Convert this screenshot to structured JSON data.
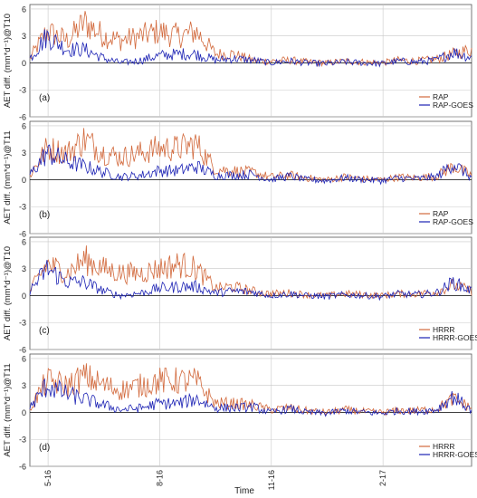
{
  "figure": {
    "xlabel": "Time",
    "x_ticks": [
      "5-16",
      "8-16",
      "11-16",
      "2-17"
    ]
  },
  "colors": {
    "model": "#d2693c",
    "goes": "#1c22b4",
    "grid": "#c8c8c8",
    "zero": "#000000"
  },
  "chart_data": [
    {
      "type": "line",
      "panel_label": "(a)",
      "ylabel": "AET diff. (mm*d⁻¹)@T10",
      "ylim": [
        -6,
        6.5
      ],
      "y_ticks": [
        -6,
        -3,
        0,
        3,
        6
      ],
      "x": [
        "2016-05-01",
        "2016-05-15",
        "2016-06-01",
        "2016-06-15",
        "2016-07-01",
        "2016-07-15",
        "2016-08-01",
        "2016-08-15",
        "2016-09-01",
        "2016-09-15",
        "2016-10-01",
        "2016-10-15",
        "2016-11-01",
        "2016-11-15",
        "2016-12-01",
        "2016-12-15",
        "2017-01-01",
        "2017-01-15",
        "2017-02-01",
        "2017-02-15",
        "2017-03-01",
        "2017-03-15",
        "2017-04-01",
        "2017-04-15",
        "2017-04-30"
      ],
      "legend": "bottom-right",
      "series": [
        {
          "name": "RAP",
          "values": [
            0.5,
            3.5,
            2.5,
            4.5,
            3.0,
            2.5,
            3.0,
            3.5,
            3.0,
            3.5,
            1.0,
            1.0,
            0.3,
            0.2,
            0.3,
            0.1,
            0.0,
            0.2,
            0.1,
            0.0,
            0.3,
            0.2,
            0.4,
            1.0,
            1.5
          ]
        },
        {
          "name": "RAP-GOES",
          "values": [
            0.5,
            3.0,
            1.5,
            1.5,
            0.5,
            0.0,
            0.3,
            0.8,
            1.0,
            1.0,
            0.3,
            0.5,
            0.3,
            0.0,
            0.2,
            0.0,
            -0.1,
            0.1,
            0.0,
            -0.1,
            0.2,
            0.1,
            0.3,
            1.2,
            0.6
          ]
        }
      ]
    },
    {
      "type": "line",
      "panel_label": "(b)",
      "ylabel": "AET diff. (mm*d⁻¹)@T11",
      "ylim": [
        -6,
        6.5
      ],
      "y_ticks": [
        -6,
        -3,
        0,
        3,
        6
      ],
      "x": [
        "2016-05-01",
        "2016-05-15",
        "2016-06-01",
        "2016-06-15",
        "2016-07-01",
        "2016-07-15",
        "2016-08-01",
        "2016-08-15",
        "2016-09-01",
        "2016-09-15",
        "2016-10-01",
        "2016-10-15",
        "2016-11-01",
        "2016-11-15",
        "2016-12-01",
        "2016-12-15",
        "2017-01-01",
        "2017-01-15",
        "2017-02-01",
        "2017-02-15",
        "2017-03-01",
        "2017-03-15",
        "2017-04-01",
        "2017-04-15",
        "2017-04-30"
      ],
      "legend": "bottom-right",
      "series": [
        {
          "name": "RAP",
          "values": [
            0.5,
            3.5,
            3.0,
            4.5,
            3.0,
            2.5,
            3.0,
            3.5,
            3.5,
            4.0,
            1.2,
            1.0,
            0.8,
            0.3,
            0.5,
            0.2,
            0.0,
            0.3,
            0.1,
            0.0,
            0.3,
            0.2,
            0.4,
            1.5,
            0.5
          ]
        },
        {
          "name": "RAP-GOES",
          "values": [
            0.5,
            3.0,
            2.0,
            1.5,
            0.8,
            0.3,
            0.5,
            1.0,
            1.0,
            1.5,
            0.5,
            0.5,
            0.6,
            0.0,
            0.4,
            0.0,
            -0.1,
            0.2,
            0.0,
            -0.1,
            0.2,
            0.1,
            0.3,
            1.8,
            0.2
          ]
        }
      ]
    },
    {
      "type": "line",
      "panel_label": "(c)",
      "ylabel": "AET diff. (mm*d⁻¹)@T10",
      "ylim": [
        -6,
        6.5
      ],
      "y_ticks": [
        -6,
        -3,
        0,
        3,
        6
      ],
      "x": [
        "2016-05-01",
        "2016-05-15",
        "2016-06-01",
        "2016-06-15",
        "2016-07-01",
        "2016-07-15",
        "2016-08-01",
        "2016-08-15",
        "2016-09-01",
        "2016-09-15",
        "2016-10-01",
        "2016-10-15",
        "2016-11-01",
        "2016-11-15",
        "2016-12-01",
        "2016-12-15",
        "2017-01-01",
        "2017-01-15",
        "2017-02-01",
        "2017-02-15",
        "2017-03-01",
        "2017-03-15",
        "2017-04-01",
        "2017-04-15",
        "2017-04-30"
      ],
      "legend": "bottom-right",
      "series": [
        {
          "name": "HRRR",
          "values": [
            0.5,
            3.5,
            2.5,
            4.0,
            3.0,
            2.5,
            2.5,
            3.0,
            3.5,
            3.0,
            0.8,
            1.0,
            0.5,
            0.2,
            0.3,
            0.1,
            0.0,
            0.2,
            0.1,
            0.0,
            0.2,
            0.2,
            0.4,
            1.2,
            0.5
          ]
        },
        {
          "name": "HRRR-GOES",
          "values": [
            0.5,
            3.0,
            1.5,
            1.5,
            0.5,
            0.0,
            0.3,
            0.8,
            1.0,
            1.0,
            0.3,
            0.5,
            0.4,
            0.0,
            0.2,
            0.0,
            -0.1,
            0.1,
            0.0,
            -0.1,
            0.2,
            0.1,
            0.3,
            1.5,
            0.5
          ]
        }
      ]
    },
    {
      "type": "line",
      "panel_label": "(d)",
      "ylabel": "AET diff. (mm*d⁻¹)@T11",
      "ylim": [
        -6,
        6.5
      ],
      "y_ticks": [
        -6,
        -3,
        0,
        3,
        6
      ],
      "x": [
        "2016-05-01",
        "2016-05-15",
        "2016-06-01",
        "2016-06-15",
        "2016-07-01",
        "2016-07-15",
        "2016-08-01",
        "2016-08-15",
        "2016-09-01",
        "2016-09-15",
        "2016-10-01",
        "2016-10-15",
        "2016-11-01",
        "2016-11-15",
        "2016-12-01",
        "2016-12-15",
        "2017-01-01",
        "2017-01-15",
        "2017-02-01",
        "2017-02-15",
        "2017-03-01",
        "2017-03-15",
        "2017-04-01",
        "2017-04-15",
        "2017-04-30"
      ],
      "legend": "bottom-right",
      "series": [
        {
          "name": "HRRR",
          "values": [
            0.5,
            3.5,
            3.0,
            4.0,
            3.0,
            2.5,
            3.0,
            3.5,
            3.5,
            3.5,
            1.0,
            1.0,
            0.8,
            0.3,
            0.5,
            0.2,
            0.0,
            0.3,
            0.1,
            0.0,
            0.2,
            0.2,
            0.4,
            1.5,
            0.5
          ]
        },
        {
          "name": "HRRR-GOES",
          "values": [
            0.5,
            3.0,
            2.0,
            1.5,
            0.8,
            0.3,
            0.5,
            1.0,
            1.0,
            1.5,
            0.5,
            0.5,
            0.6,
            0.0,
            0.4,
            0.0,
            -0.1,
            0.2,
            0.0,
            -0.1,
            0.2,
            0.1,
            0.3,
            1.8,
            0.2
          ]
        }
      ]
    }
  ]
}
